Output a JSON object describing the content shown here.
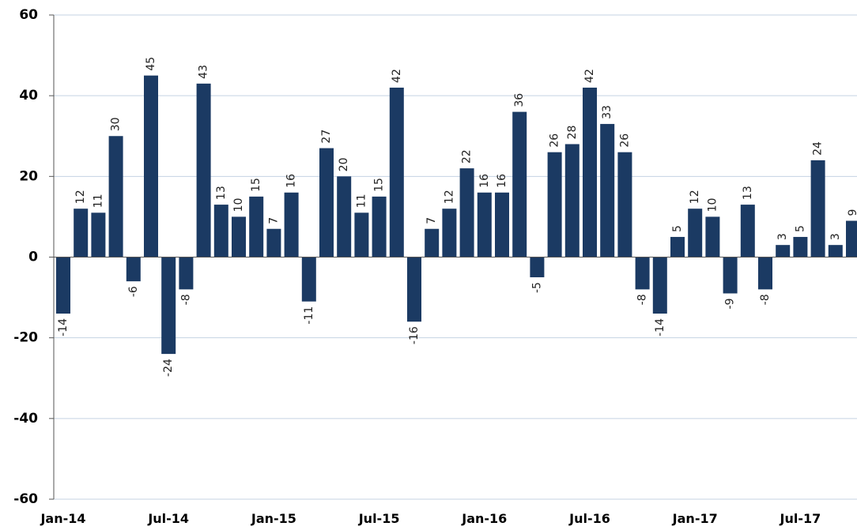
{
  "chart_data": {
    "type": "bar",
    "categories": [
      "Jan-14",
      null,
      null,
      null,
      null,
      null,
      "Jul-14",
      null,
      null,
      null,
      null,
      null,
      "Jan-15",
      null,
      null,
      null,
      null,
      null,
      "Jul-15",
      null,
      null,
      null,
      null,
      null,
      "Jan-16",
      null,
      null,
      null,
      null,
      null,
      "Jul-16",
      null,
      null,
      null,
      null,
      null,
      "Jan-17",
      null,
      null,
      null,
      null,
      null,
      "Jul-17",
      null,
      null,
      null
    ],
    "values": [
      -14,
      12,
      11,
      30,
      -6,
      45,
      -24,
      -8,
      43,
      13,
      10,
      15,
      7,
      16,
      -11,
      27,
      20,
      11,
      15,
      42,
      -16,
      7,
      12,
      22,
      16,
      16,
      36,
      -5,
      26,
      28,
      42,
      33,
      26,
      -8,
      -14,
      5,
      12,
      10,
      -9,
      13,
      -8,
      3,
      5,
      24,
      3,
      9
    ],
    "color": "#1b3a63",
    "ylim": [
      -60,
      60
    ],
    "yticks": [
      -60,
      -40,
      -20,
      0,
      20,
      40,
      60
    ],
    "grid": true
  }
}
